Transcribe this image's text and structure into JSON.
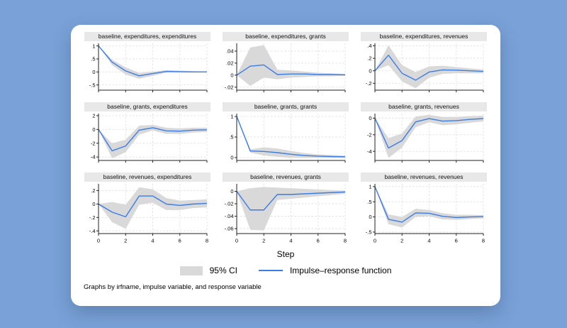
{
  "page": {
    "background_color": "#7aa2d8",
    "card_color": "#ffffff"
  },
  "chart_data": {
    "type": "line",
    "title": "",
    "xlabel": "Step",
    "note": "Graphs by irfname, impulse variable, and response variable",
    "legend": {
      "ci_label": "95% CI",
      "irf_label": "Impulse–response function",
      "position": "bottom-center"
    },
    "colors": {
      "irf_line": "#3a7ce8",
      "ci_fill": "#d9d9d9",
      "title_strip": "#e8e8e8",
      "grid_line": "#e1e1e1",
      "axis": "#222222"
    },
    "grid": true,
    "x": [
      0,
      1,
      2,
      3,
      4,
      5,
      6,
      7,
      8
    ],
    "xticks": [
      0,
      2,
      4,
      6,
      8
    ],
    "xlim": [
      0,
      8
    ],
    "panels": [
      {
        "title": "baseline, expenditures, expenditures",
        "ylim": [
          -0.7,
          1.1
        ],
        "yticks": [
          1,
          0.5,
          0,
          -0.5
        ],
        "ytick_labels": [
          "1",
          ".5",
          "0",
          "-.5"
        ],
        "irf": [
          1,
          0.38,
          0.04,
          -0.15,
          -0.06,
          0.02,
          0.01,
          0,
          0
        ],
        "ci_lower": [
          1,
          0.26,
          -0.1,
          -0.26,
          -0.15,
          -0.03,
          -0.03,
          -0.02,
          -0.01
        ],
        "ci_upper": [
          1,
          0.47,
          0.18,
          -0.04,
          0.01,
          0.07,
          0.05,
          0.03,
          0.02
        ],
        "show_xtick_labels": false
      },
      {
        "title": "baseline, expenditures, grants",
        "ylim": [
          -0.025,
          0.053
        ],
        "yticks": [
          0.04,
          0.02,
          0,
          -0.02
        ],
        "ytick_labels": [
          ".04",
          ".02",
          "0",
          "-.02"
        ],
        "irf": [
          0,
          0.015,
          0.017,
          0.001,
          0.002,
          0.002,
          0.001,
          0.001,
          0.0005
        ],
        "ci_lower": [
          0,
          -0.018,
          -0.004,
          -0.007,
          -0.004,
          -0.003,
          -0.002,
          -0.002,
          -0.001
        ],
        "ci_upper": [
          0,
          0.046,
          0.05,
          0.009,
          0.008,
          0.006,
          0.004,
          0.003,
          0.002
        ],
        "show_xtick_labels": false
      },
      {
        "title": "baseline, expenditures, revenues",
        "ylim": [
          -0.31,
          0.44
        ],
        "yticks": [
          0.4,
          0.2,
          0,
          -0.2
        ],
        "ytick_labels": [
          ".4",
          ".2",
          "0",
          "-.2"
        ],
        "irf": [
          0,
          0.25,
          -0.04,
          -0.15,
          -0.02,
          0.015,
          0.01,
          0,
          -0.01
        ],
        "ci_lower": [
          0,
          0.09,
          -0.17,
          -0.28,
          -0.11,
          -0.05,
          -0.04,
          -0.04,
          -0.04
        ],
        "ci_upper": [
          0,
          0.41,
          0.09,
          -0.02,
          0.07,
          0.08,
          0.06,
          0.04,
          0.02
        ],
        "show_xtick_labels": false
      },
      {
        "title": "baseline, grants, expenditures",
        "ylim": [
          -4.5,
          2.3
        ],
        "yticks": [
          2,
          0,
          -2,
          -4
        ],
        "ytick_labels": [
          "2",
          "0",
          "-2",
          "-4"
        ],
        "irf": [
          0,
          -3.1,
          -2.4,
          -0.1,
          0.25,
          -0.2,
          -0.25,
          -0.1,
          -0.05
        ],
        "ci_lower": [
          0,
          -4.2,
          -3.3,
          -0.75,
          -0.15,
          -0.65,
          -0.65,
          -0.45,
          -0.35
        ],
        "ci_upper": [
          0,
          -2.0,
          -1.5,
          0.55,
          0.65,
          0.25,
          0.15,
          0.25,
          0.25
        ],
        "show_xtick_labels": false
      },
      {
        "title": "baseline, grants, grants",
        "ylim": [
          -0.07,
          1.07
        ],
        "yticks": [
          1,
          0.5,
          0
        ],
        "ytick_labels": [
          "1",
          ".5",
          "0"
        ],
        "irf": [
          1,
          0.16,
          0.15,
          0.12,
          0.08,
          0.05,
          0.035,
          0.025,
          0.02
        ],
        "ci_lower": [
          1,
          0.12,
          0.05,
          0.02,
          0,
          -0.01,
          -0.01,
          -0.01,
          -0.01
        ],
        "ci_upper": [
          1,
          0.2,
          0.25,
          0.22,
          0.16,
          0.11,
          0.08,
          0.06,
          0.05
        ],
        "show_xtick_labels": false
      },
      {
        "title": "baseline, grants, revenues",
        "ylim": [
          -5.1,
          0.55
        ],
        "yticks": [
          0,
          -2,
          -4
        ],
        "ytick_labels": [
          "0",
          "-2",
          "-4"
        ],
        "irf": [
          0,
          -3.6,
          -2.7,
          -0.45,
          -0.05,
          -0.35,
          -0.3,
          -0.15,
          -0.05
        ],
        "ci_lower": [
          0,
          -4.8,
          -3.55,
          -1.1,
          -0.5,
          -0.85,
          -0.75,
          -0.55,
          -0.4
        ],
        "ci_upper": [
          0,
          -2.4,
          -1.85,
          0.2,
          0.4,
          0.15,
          0.15,
          0.25,
          0.3
        ],
        "show_xtick_labels": false
      },
      {
        "title": "baseline, revenues, expenditures",
        "ylim": [
          -0.44,
          0.3
        ],
        "yticks": [
          0.2,
          0,
          -0.2,
          -0.4
        ],
        "ytick_labels": [
          ".2",
          "0",
          "-.2",
          "-.4"
        ],
        "irf": [
          0,
          -0.12,
          -0.19,
          0.12,
          0.12,
          0,
          -0.02,
          0,
          0.01
        ],
        "ci_lower": [
          0,
          -0.27,
          -0.37,
          -0.01,
          0.02,
          -0.09,
          -0.09,
          -0.06,
          -0.05
        ],
        "ci_upper": [
          0,
          0.03,
          -0.01,
          0.25,
          0.22,
          0.09,
          0.05,
          0.06,
          0.07
        ],
        "show_xtick_labels": true
      },
      {
        "title": "baseline, revenues, grants",
        "ylim": [
          -0.068,
          0.012
        ],
        "yticks": [
          0,
          -0.02,
          -0.04,
          -0.06
        ],
        "ytick_labels": [
          "0",
          "-.02",
          "-.04",
          "-.06"
        ],
        "irf": [
          0,
          -0.03,
          -0.03,
          -0.005,
          -0.005,
          -0.004,
          -0.003,
          -0.002,
          -0.001
        ],
        "ci_lower": [
          0,
          -0.062,
          -0.063,
          -0.014,
          -0.012,
          -0.01,
          -0.008,
          -0.006,
          -0.004
        ],
        "ci_upper": [
          0,
          0.005,
          0.007,
          0.006,
          0.005,
          0.004,
          0.003,
          0.002,
          0.001
        ],
        "show_xtick_labels": true
      },
      {
        "title": "baseline, revenues, revenues",
        "ylim": [
          -0.55,
          1.09
        ],
        "yticks": [
          1,
          0.5,
          0,
          -0.5
        ],
        "ytick_labels": [
          "1",
          ".5",
          "0",
          "-.5"
        ],
        "irf": [
          1,
          -0.08,
          -0.17,
          0.13,
          0.12,
          0.02,
          -0.02,
          0,
          0.01
        ],
        "ci_lower": [
          1,
          -0.24,
          -0.35,
          0,
          0.02,
          -0.08,
          -0.1,
          -0.07,
          -0.05
        ],
        "ci_upper": [
          1,
          0.08,
          0,
          0.27,
          0.23,
          0.12,
          0.07,
          0.07,
          0.06
        ],
        "show_xtick_labels": true
      }
    ],
    "xtick_labels": [
      "0",
      "2",
      "4",
      "6",
      "8"
    ]
  }
}
